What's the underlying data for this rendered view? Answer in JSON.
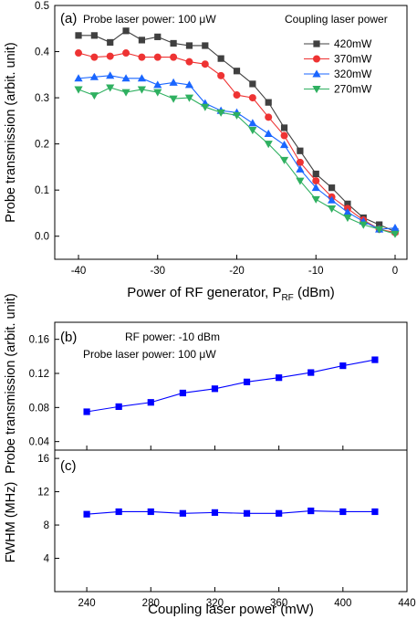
{
  "chart_data": [
    {
      "id": "a",
      "type": "line",
      "panel_label": "(a)",
      "annotation": "Probe laser power: 100 μW",
      "legend_title": "Coupling laser power",
      "xlabel": "Power of RF generator, P",
      "xlabel_sub": "RF",
      "xlabel_unit": " (dBm)",
      "ylabel": "Probe transmission (arbit. unit)",
      "xlim": [
        -43,
        1.5
      ],
      "ylim": [
        -0.05,
        0.5
      ],
      "xticks": [
        -40,
        -30,
        -20,
        -10,
        0
      ],
      "yticks": [
        0.0,
        0.1,
        0.2,
        0.3,
        0.4,
        0.5
      ],
      "ytick_labels": [
        "0.0",
        "0.1",
        "0.2",
        "0.3",
        "0.4",
        "0.5"
      ],
      "x": [
        -40,
        -38,
        -36,
        -34,
        -32,
        -30,
        -28,
        -26,
        -24,
        -22,
        -20,
        -18,
        -16,
        -14,
        -12,
        -10,
        -8,
        -6,
        -4,
        -2,
        0
      ],
      "series": [
        {
          "name": "420mW",
          "color": "#404040",
          "marker": "square",
          "values": [
            0.435,
            0.435,
            0.42,
            0.445,
            0.425,
            0.432,
            0.418,
            0.413,
            0.413,
            0.385,
            0.358,
            0.33,
            0.29,
            0.235,
            0.185,
            0.135,
            0.105,
            0.07,
            0.04,
            0.025,
            0.01
          ]
        },
        {
          "name": "370mW",
          "color": "#ee3333",
          "marker": "circle",
          "values": [
            0.397,
            0.388,
            0.39,
            0.397,
            0.388,
            0.388,
            0.388,
            0.378,
            0.373,
            0.348,
            0.306,
            0.3,
            0.258,
            0.218,
            0.16,
            0.12,
            0.085,
            0.06,
            0.035,
            0.015,
            0.008
          ]
        },
        {
          "name": "320mW",
          "color": "#1a66ff",
          "marker": "triangle-up",
          "values": [
            0.342,
            0.345,
            0.348,
            0.342,
            0.342,
            0.328,
            0.333,
            0.328,
            0.288,
            0.272,
            0.268,
            0.245,
            0.222,
            0.198,
            0.145,
            0.105,
            0.078,
            0.052,
            0.032,
            0.015,
            0.018
          ]
        },
        {
          "name": "270mW",
          "color": "#2fb060",
          "marker": "triangle-down",
          "values": [
            0.318,
            0.305,
            0.322,
            0.312,
            0.318,
            0.312,
            0.298,
            0.3,
            0.28,
            0.268,
            0.262,
            0.23,
            0.2,
            0.165,
            0.12,
            0.08,
            0.06,
            0.04,
            0.025,
            0.015,
            0.005
          ]
        }
      ]
    },
    {
      "id": "b",
      "type": "line",
      "panel_label": "(b)",
      "annotations": [
        "RF power: -10 dBm",
        "Probe laser power: 100 μW"
      ],
      "ylim": [
        0.03,
        0.18
      ],
      "yticks": [
        0.04,
        0.08,
        0.12,
        0.16
      ],
      "ytick_labels": [
        "0.04",
        "0.08",
        "0.12",
        "0.16"
      ],
      "x": [
        240,
        260,
        280,
        300,
        320,
        340,
        360,
        380,
        400,
        420
      ],
      "series": [
        {
          "color": "#0000ff",
          "marker": "square",
          "values": [
            0.075,
            0.081,
            0.086,
            0.097,
            0.102,
            0.11,
            0.115,
            0.121,
            0.129,
            0.136
          ]
        }
      ]
    },
    {
      "id": "c",
      "type": "line",
      "panel_label": "(c)",
      "xlabel": "Coupling laser power (mW)",
      "ylabel": "FWHM (MHz)",
      "xlim": [
        220,
        440
      ],
      "ylim": [
        0,
        17
      ],
      "xticks": [
        240,
        280,
        320,
        360,
        400,
        440
      ],
      "yticks": [
        4,
        8,
        12,
        16
      ],
      "ytick_labels": [
        "4",
        "8",
        "12",
        "16"
      ],
      "x": [
        240,
        260,
        280,
        300,
        320,
        340,
        360,
        380,
        400,
        420
      ],
      "series": [
        {
          "color": "#0000ff",
          "marker": "square",
          "values": [
            9.3,
            9.6,
            9.6,
            9.4,
            9.5,
            9.4,
            9.4,
            9.7,
            9.6,
            9.6
          ]
        }
      ]
    }
  ],
  "shared_ylabel_bc": "Probe transmission (arbit. unit)"
}
